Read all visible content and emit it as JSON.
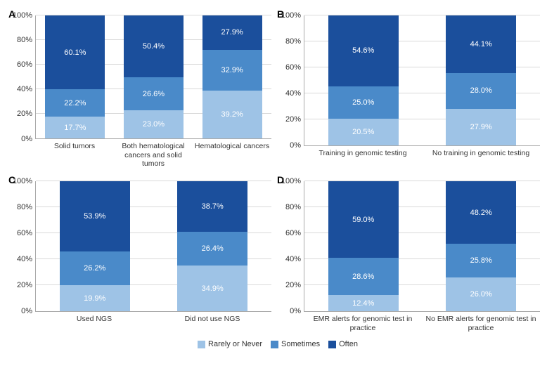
{
  "colors": {
    "rarely": "#9ec3e6",
    "sometimes": "#4a8ac9",
    "often": "#1b4f9c",
    "grid": "#d9d9d9",
    "axis": "#aaaaaa"
  },
  "legend": [
    {
      "key": "rarely",
      "label": "Rarely or Never"
    },
    {
      "key": "sometimes",
      "label": "Sometimes"
    },
    {
      "key": "often",
      "label": "Often"
    }
  ],
  "y_ticks": [
    "0%",
    "20%",
    "40%",
    "60%",
    "80%",
    "100%"
  ],
  "y_tick_step": 20,
  "ylim": [
    0,
    100
  ],
  "panels": {
    "A": {
      "letter": "A",
      "categories": [
        "Solid tumors",
        "Both hematological cancers and solid tumors",
        "Hematological cancers"
      ],
      "bars": [
        {
          "rarely": 17.7,
          "sometimes": 22.2,
          "often": 60.1
        },
        {
          "rarely": 23.0,
          "sometimes": 26.6,
          "often": 50.4
        },
        {
          "rarely": 39.2,
          "sometimes": 32.9,
          "often": 27.9
        }
      ]
    },
    "B": {
      "letter": "B",
      "categories": [
        "Training in genomic testing",
        "No training in genomic testing"
      ],
      "bars": [
        {
          "rarely": 20.5,
          "sometimes": 25.0,
          "often": 54.6
        },
        {
          "rarely": 27.9,
          "sometimes": 28.0,
          "often": 44.1
        }
      ]
    },
    "C": {
      "letter": "C",
      "categories": [
        "Used NGS",
        "Did not use NGS"
      ],
      "bars": [
        {
          "rarely": 19.9,
          "sometimes": 26.2,
          "often": 53.9
        },
        {
          "rarely": 34.9,
          "sometimes": 26.4,
          "often": 38.7
        }
      ]
    },
    "D": {
      "letter": "D",
      "categories": [
        "EMR alerts for genomic test in practice",
        "No EMR alerts for genomic test in practice"
      ],
      "bars": [
        {
          "rarely": 12.4,
          "sometimes": 28.6,
          "often": 59.0
        },
        {
          "rarely": 26.0,
          "sometimes": 25.8,
          "often": 48.2
        }
      ]
    }
  }
}
